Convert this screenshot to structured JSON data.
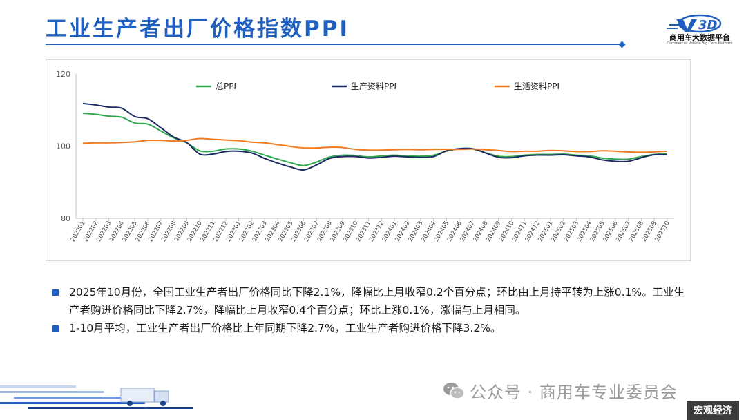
{
  "header": {
    "title": "工业生产者出厂价格指数PPI",
    "logo_name": "商用车大数据平台",
    "logo_sub": "Commercial Vehicle Big Data Platform"
  },
  "chart_data": {
    "type": "line",
    "title": "",
    "xlabel": "",
    "ylabel": "",
    "ylim": [
      80,
      120
    ],
    "yticks": [
      80,
      100,
      120
    ],
    "grid": false,
    "legend_position": "top",
    "x": [
      "202201",
      "202202",
      "202203",
      "202204",
      "202205",
      "202206",
      "202207",
      "202208",
      "202209",
      "202210",
      "202211",
      "202212",
      "202301",
      "202302",
      "202303",
      "202304",
      "202305",
      "202306",
      "202307",
      "202308",
      "202309",
      "202310",
      "202311",
      "202312",
      "202401",
      "202402",
      "202403",
      "202404",
      "202405",
      "202406",
      "202407",
      "202408",
      "202409",
      "202410",
      "202411",
      "202412",
      "202501",
      "202502",
      "202503",
      "202504",
      "202505",
      "202506",
      "202507",
      "202508",
      "202509",
      "202510"
    ],
    "series": [
      {
        "name": "总PPI",
        "color": "#2ea84e",
        "values": [
          109.1,
          108.8,
          108.3,
          108.0,
          106.4,
          106.1,
          104.2,
          102.3,
          100.9,
          98.7,
          98.6,
          99.2,
          99.2,
          98.6,
          97.5,
          96.4,
          95.4,
          94.6,
          95.6,
          97.0,
          97.5,
          97.4,
          97.0,
          97.3,
          97.5,
          97.3,
          97.2,
          97.5,
          98.6,
          99.2,
          99.2,
          98.2,
          97.2,
          97.1,
          97.5,
          97.7,
          97.7,
          97.8,
          97.5,
          97.3,
          96.7,
          96.4,
          96.4,
          97.1,
          97.7,
          97.9
        ]
      },
      {
        "name": "生产资料PPI",
        "color": "#1b2a63",
        "values": [
          111.8,
          111.4,
          110.8,
          110.5,
          108.2,
          107.6,
          105.1,
          102.5,
          101.0,
          97.8,
          97.8,
          98.5,
          98.6,
          98.1,
          96.6,
          95.3,
          94.2,
          93.4,
          94.8,
          96.6,
          97.1,
          97.1,
          96.7,
          96.9,
          97.2,
          97.0,
          96.9,
          97.1,
          98.7,
          99.3,
          99.3,
          98.1,
          96.9,
          96.8,
          97.3,
          97.5,
          97.5,
          97.6,
          97.3,
          97.0,
          96.2,
          95.8,
          95.8,
          96.8,
          97.6,
          97.6
        ]
      },
      {
        "name": "生活资料PPI",
        "color": "#f07a22",
        "values": [
          100.8,
          100.9,
          100.9,
          101.0,
          101.2,
          101.6,
          101.6,
          101.4,
          101.6,
          102.1,
          101.9,
          101.7,
          101.5,
          101.1,
          100.9,
          100.4,
          99.9,
          99.5,
          99.5,
          99.7,
          99.6,
          99.1,
          98.9,
          98.9,
          99.0,
          99.1,
          99.0,
          99.1,
          99.1,
          99.1,
          99.2,
          99.0,
          98.8,
          98.5,
          98.6,
          98.6,
          98.8,
          98.7,
          98.5,
          98.5,
          98.7,
          98.6,
          98.4,
          98.3,
          98.4,
          98.6
        ]
      }
    ]
  },
  "bullets": [
    "2025年10月份，全国工业生产者出厂价格同比下降2.1%，降幅比上月收窄0.2个百分点；环比由上月持平转为上涨0.1%。工业生产者购进价格同比下降2.7%，降幅比上月收窄0.4个百分点；环比上涨0.1%，涨幅与上月相同。",
    "1-10月平均，工业生产者出厂价格比上年同期下降2.7%，工业生产者购进价格下降3.2%。"
  ],
  "footer": {
    "wechat": "公众号 · 商用车专业委员会",
    "tag": "宏观经济"
  },
  "colors": {
    "accent": "#1f5fbf",
    "tag_bg": "#3c3c3c"
  }
}
